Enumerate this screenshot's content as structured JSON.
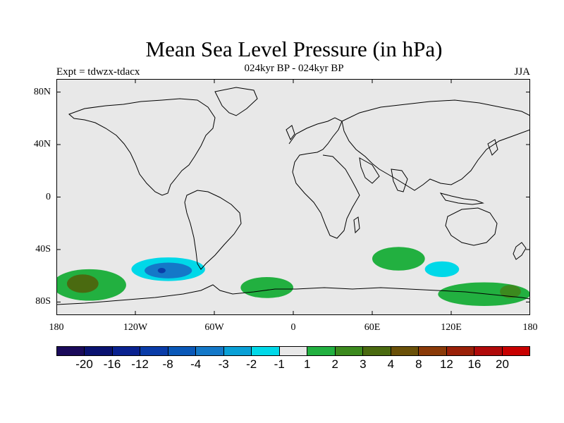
{
  "header": {
    "title": "Mean Sea Level Pressure (in hPa)",
    "subtitle": "024kyr BP - 024kyr BP",
    "expt": "Expt = tdwzx-tdacx",
    "season": "JJA"
  },
  "map": {
    "land_color": "#e8e8e8",
    "lat_ticks": [
      {
        "value": 80,
        "label": "80N"
      },
      {
        "value": 40,
        "label": "40N"
      },
      {
        "value": 0,
        "label": "0"
      },
      {
        "value": -40,
        "label": "40S"
      },
      {
        "value": -80,
        "label": "80S"
      }
    ],
    "lon_ticks": [
      {
        "value": -180,
        "label": "180"
      },
      {
        "value": -120,
        "label": "120W"
      },
      {
        "value": -60,
        "label": "60W"
      },
      {
        "value": 0,
        "label": "0"
      },
      {
        "value": 60,
        "label": "60E"
      },
      {
        "value": 120,
        "label": "120E"
      },
      {
        "value": 180,
        "label": "180"
      }
    ]
  },
  "colorbar": {
    "colors": [
      "#1a0a5a",
      "#0a1270",
      "#0a2290",
      "#0a3ca8",
      "#0a58b8",
      "#1478c8",
      "#0aa0d6",
      "#00d8e8",
      "#e8e8e8",
      "#22b040",
      "#3c8a1e",
      "#4a6a10",
      "#6a5008",
      "#8a3a08",
      "#9a2008",
      "#b00a0a",
      "#c80000"
    ],
    "labels": [
      {
        "boundary": 1,
        "text": "-20"
      },
      {
        "boundary": 2,
        "text": "-16"
      },
      {
        "boundary": 3,
        "text": "-12"
      },
      {
        "boundary": 4,
        "text": "-8"
      },
      {
        "boundary": 5,
        "text": "-4"
      },
      {
        "boundary": 6,
        "text": "-3"
      },
      {
        "boundary": 7,
        "text": "-2"
      },
      {
        "boundary": 8,
        "text": "-1"
      },
      {
        "boundary": 9,
        "text": "1"
      },
      {
        "boundary": 10,
        "text": "2"
      },
      {
        "boundary": 11,
        "text": "3"
      },
      {
        "boundary": 12,
        "text": "4"
      },
      {
        "boundary": 13,
        "text": "8"
      },
      {
        "boundary": 14,
        "text": "12"
      },
      {
        "boundary": 15,
        "text": "16"
      },
      {
        "boundary": 16,
        "text": "20"
      }
    ]
  },
  "anomalies": [
    {
      "name": "south-pacific-low",
      "lon": -95,
      "lat": -55,
      "rx_deg": 28,
      "ry_deg": 9,
      "color": "#00d8e8"
    },
    {
      "name": "south-pacific-low-core",
      "lon": -95,
      "lat": -56,
      "rx_deg": 18,
      "ry_deg": 6,
      "color": "#1478c8"
    },
    {
      "name": "south-pacific-low-center",
      "lon": -100,
      "lat": -56,
      "rx_deg": 3,
      "ry_deg": 2,
      "color": "#0a3ca8"
    },
    {
      "name": "indian-ocean-low",
      "lon": 113,
      "lat": -55,
      "rx_deg": 13,
      "ry_deg": 6,
      "color": "#00d8e8"
    },
    {
      "name": "south-atlantic-high",
      "lon": 80,
      "lat": -47,
      "rx_deg": 20,
      "ry_deg": 9,
      "color": "#22b040"
    },
    {
      "name": "weddell-high",
      "lon": -20,
      "lat": -69,
      "rx_deg": 20,
      "ry_deg": 8,
      "color": "#22b040"
    },
    {
      "name": "pacific-sector-high",
      "lon": -155,
      "lat": -67,
      "rx_deg": 28,
      "ry_deg": 12,
      "color": "#22b040"
    },
    {
      "name": "pacific-sector-high-core",
      "lon": -160,
      "lat": -66,
      "rx_deg": 12,
      "ry_deg": 7,
      "color": "#4a6a10"
    },
    {
      "name": "east-antarctic-high",
      "lon": 145,
      "lat": -74,
      "rx_deg": 35,
      "ry_deg": 9,
      "color": "#22b040"
    },
    {
      "name": "east-antarctic-high-core",
      "lon": 165,
      "lat": -72,
      "rx_deg": 8,
      "ry_deg": 5,
      "color": "#3c8a1e"
    }
  ]
}
